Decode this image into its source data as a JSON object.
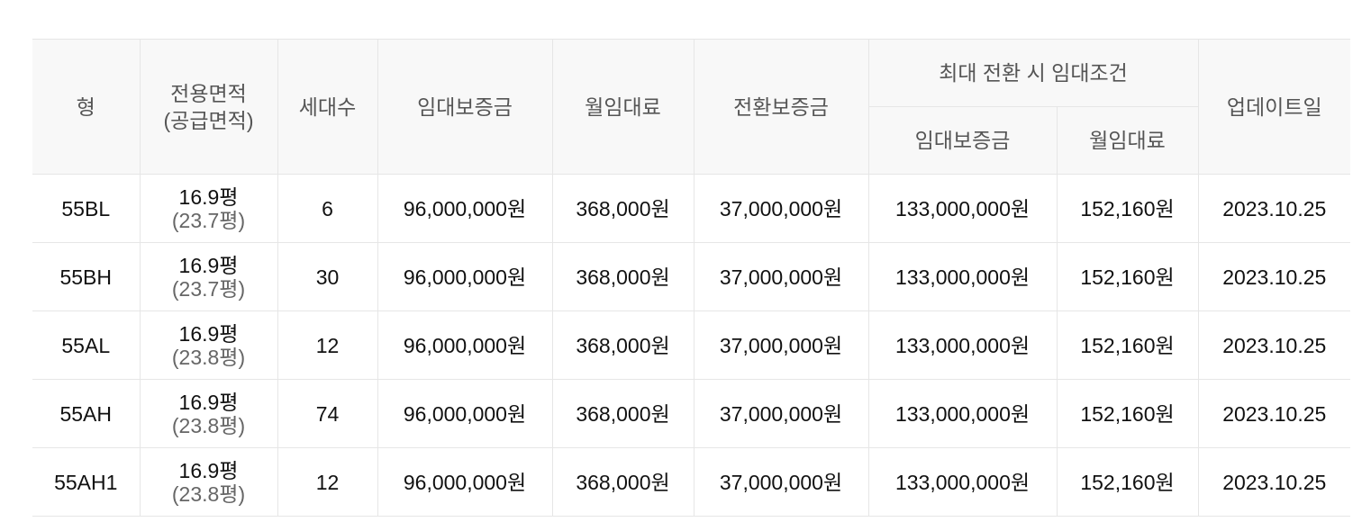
{
  "headers": {
    "type": "형",
    "area": "전용면적",
    "supply_area": "(공급면적)",
    "households": "세대수",
    "deposit": "임대보증금",
    "rent": "월임대료",
    "conv_deposit": "전환보증금",
    "max_group": "최대 전환 시 임대조건",
    "max_deposit": "임대보증금",
    "max_rent": "월임대료",
    "updated": "업데이트일"
  },
  "rows": [
    {
      "type": "55BL",
      "area": "16.9평",
      "supply": "(23.7평)",
      "households": "6",
      "deposit": "96,000,000원",
      "rent": "368,000원",
      "conv": "37,000,000원",
      "max_deposit": "133,000,000원",
      "max_rent": "152,160원",
      "updated": "2023.10.25"
    },
    {
      "type": "55BH",
      "area": "16.9평",
      "supply": "(23.7평)",
      "households": "30",
      "deposit": "96,000,000원",
      "rent": "368,000원",
      "conv": "37,000,000원",
      "max_deposit": "133,000,000원",
      "max_rent": "152,160원",
      "updated": "2023.10.25"
    },
    {
      "type": "55AL",
      "area": "16.9평",
      "supply": "(23.8평)",
      "households": "12",
      "deposit": "96,000,000원",
      "rent": "368,000원",
      "conv": "37,000,000원",
      "max_deposit": "133,000,000원",
      "max_rent": "152,160원",
      "updated": "2023.10.25"
    },
    {
      "type": "55AH",
      "area": "16.9평",
      "supply": "(23.8평)",
      "households": "74",
      "deposit": "96,000,000원",
      "rent": "368,000원",
      "conv": "37,000,000원",
      "max_deposit": "133,000,000원",
      "max_rent": "152,160원",
      "updated": "2023.10.25"
    },
    {
      "type": "55AH1",
      "area": "16.9평",
      "supply": "(23.8평)",
      "households": "12",
      "deposit": "96,000,000원",
      "rent": "368,000원",
      "conv": "37,000,000원",
      "max_deposit": "133,000,000원",
      "max_rent": "152,160원",
      "updated": "2023.10.25"
    }
  ]
}
